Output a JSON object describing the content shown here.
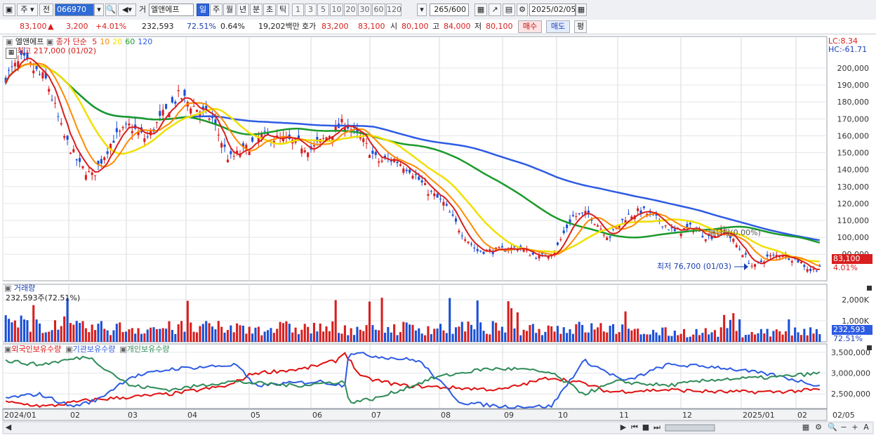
{
  "toolbar": {
    "market": "주",
    "prev_label": "전",
    "code": "066970",
    "name_prefix": "거",
    "stock_name": "엘앤에프",
    "periods": [
      "일",
      "주",
      "월",
      "년",
      "분",
      "초",
      "틱"
    ],
    "selected_period": "일",
    "intervals": [
      "1",
      "3",
      "5",
      "10",
      "20",
      "30",
      "60",
      "120"
    ],
    "count": "265",
    "count_total": "/600",
    "date": "2025/02/05"
  },
  "quote": {
    "price": "83,100",
    "arrow": "▲",
    "change": "3,200",
    "change_pct": "+4.01%",
    "volume": "232,593",
    "volume_ratio": "72.51%",
    "turnover": "0.64%",
    "amount": "19,202백만",
    "ask_label": "호가",
    "ask1": "83,200",
    "bid1": "83,100",
    "open_label": "시",
    "open": "80,100",
    "high_label": "고",
    "high": "84,000",
    "low_label": "저",
    "low": "80,100",
    "buy_label": "매수",
    "sell_label": "매도",
    "eval_label": "평"
  },
  "price_panel": {
    "stock": "엘앤에프",
    "ma_title": "종가 단순",
    "ma_periods": [
      "5",
      "10",
      "20",
      "60",
      "120"
    ],
    "ma_colors": [
      "#d81e1e",
      "#ff8a00",
      "#f0e000",
      "#1a9a2a",
      "#2d5be3"
    ],
    "high_note": "최고 217,000 (01/02)",
    "low_note": "최저 76,700 (01/03)",
    "lc": "LC:8.34",
    "hc": "HC:-61.71",
    "yticks": [
      "200,000",
      "190,000",
      "180,000",
      "170,000",
      "160,000",
      "150,000",
      "140,000",
      "130,000",
      "120,000",
      "110,000",
      "100,000",
      "90,000"
    ],
    "current_price": "83,100",
    "current_pct": "4.01%",
    "label_mid": "매단락(0.00%)"
  },
  "volume_panel": {
    "title": "거래량",
    "value_note": "232,593주(72.51%)",
    "yticks": [
      "2,000K",
      "1,000K"
    ],
    "current": "232,593",
    "current_pct": "72.51%"
  },
  "holding_panel": {
    "series_names": [
      "외국인보유수량",
      "기관보유수량",
      "개인보유수량"
    ],
    "colors": [
      "#e01010",
      "#2d5be3",
      "#2e8b57"
    ],
    "yticks": [
      "3,500,000",
      "3,000,000",
      "2,500,000"
    ]
  },
  "xaxis": {
    "labels": [
      "2024/01",
      "02",
      "03",
      "04",
      "05",
      "06",
      "07",
      "08",
      "09",
      "10",
      "11",
      "12",
      "2025/01",
      "02"
    ],
    "right_label": "02/05"
  }
}
